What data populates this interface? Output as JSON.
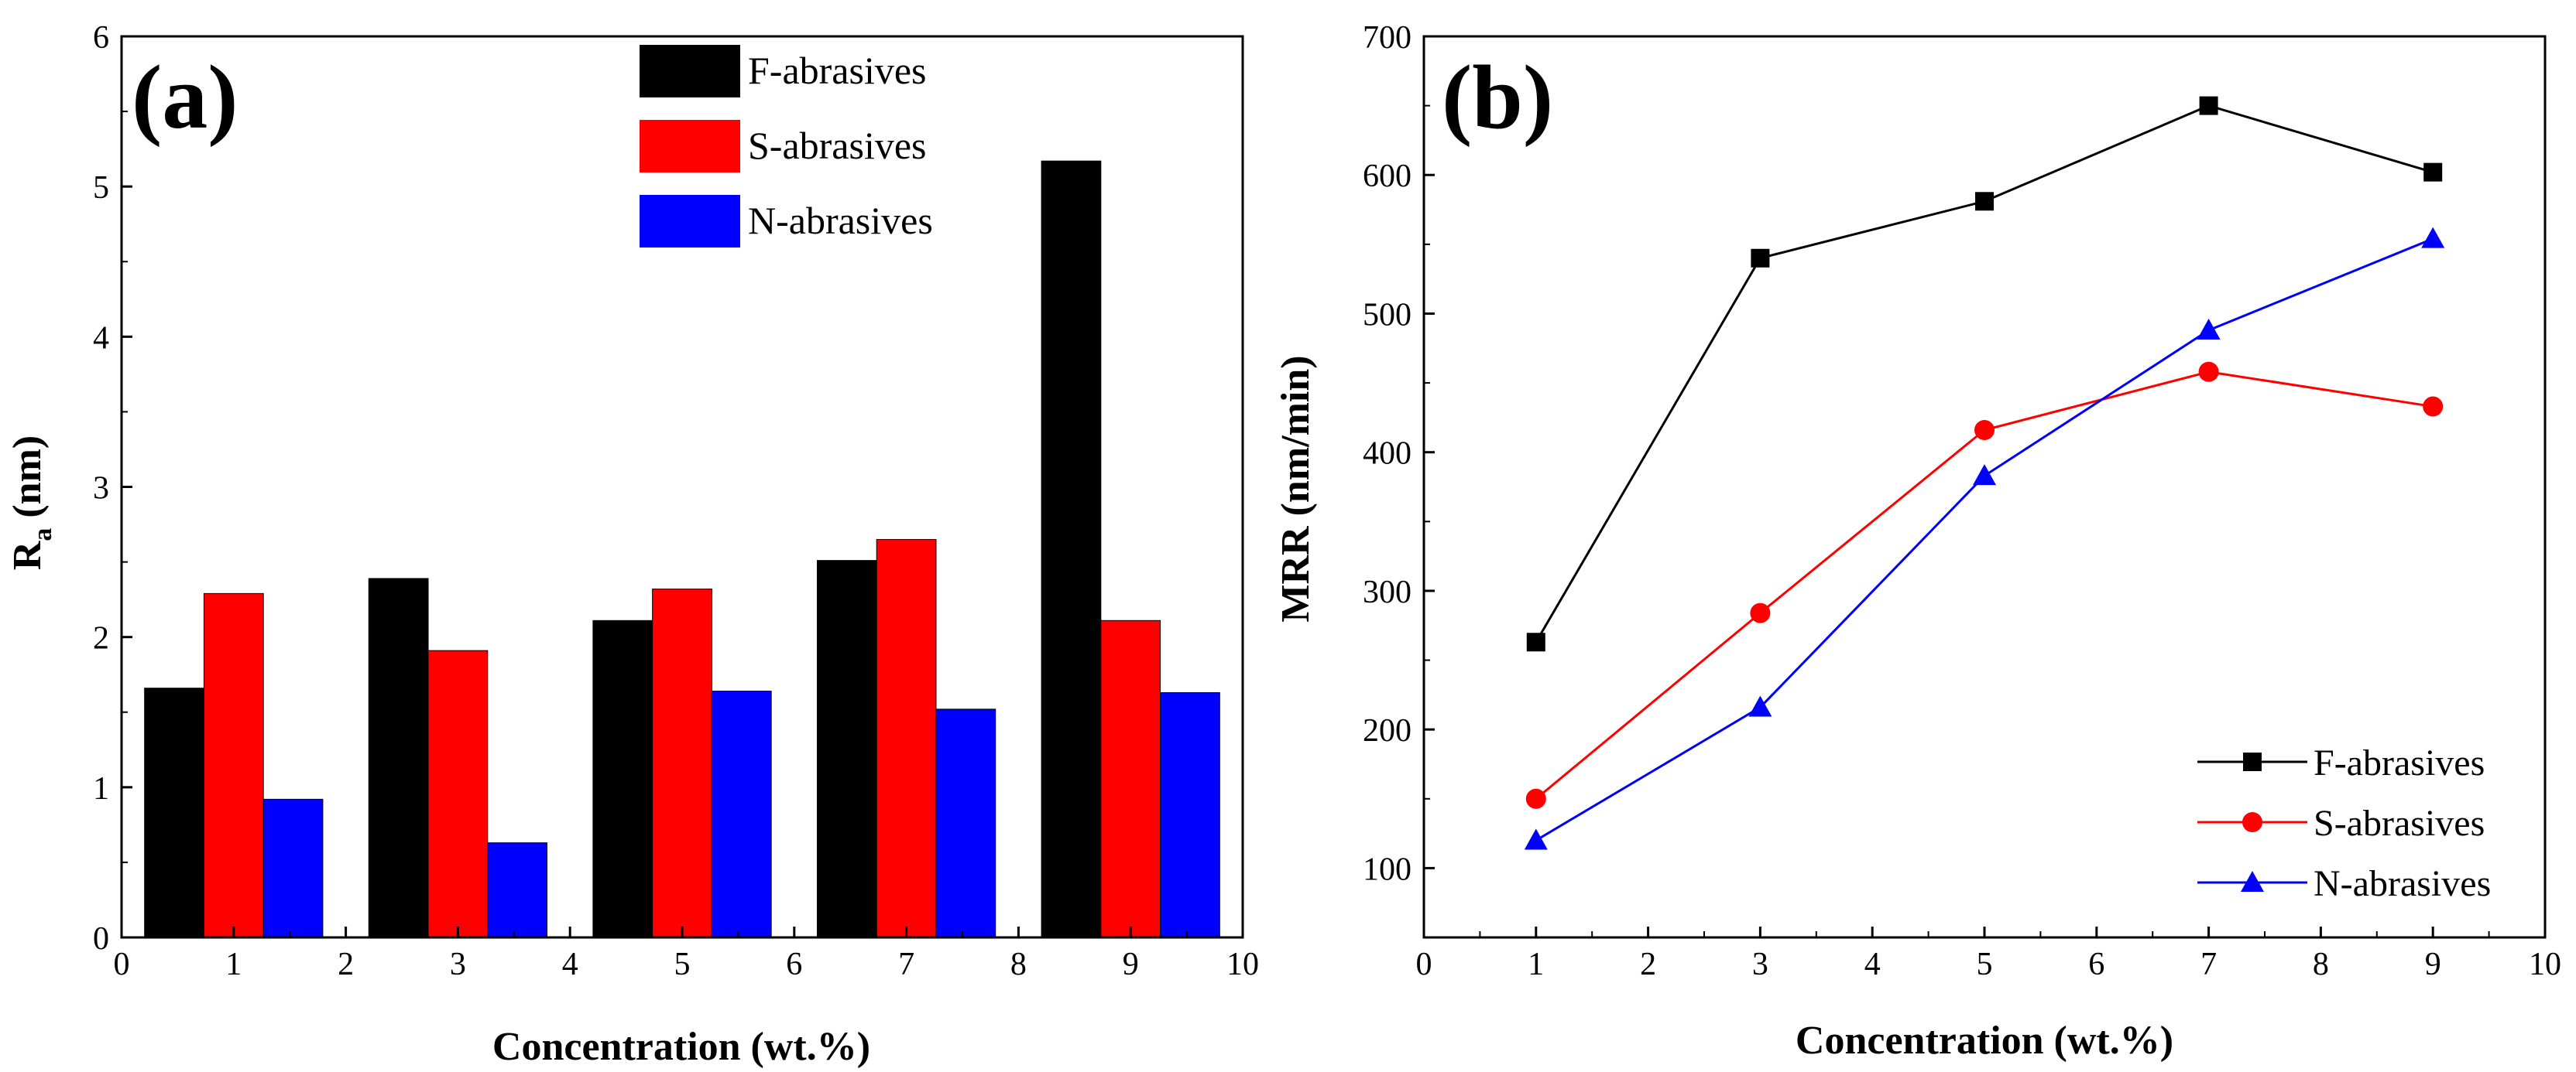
{
  "chart_data": [
    {
      "panel_label": "(a)",
      "type": "bar",
      "x": [
        1,
        3,
        5,
        7,
        9
      ],
      "series": [
        {
          "name": "F-abrasives",
          "color": "#000000",
          "values": [
            1.66,
            2.39,
            2.11,
            2.51,
            5.17
          ]
        },
        {
          "name": "S-abrasives",
          "color": "#ff0000",
          "values": [
            2.29,
            1.91,
            2.32,
            2.65,
            2.11
          ]
        },
        {
          "name": "N-abrasives",
          "color": "#0000ff",
          "values": [
            0.92,
            0.63,
            1.64,
            1.52,
            1.63
          ]
        }
      ],
      "xlabel": "Concentration (wt.%)",
      "ylabel_main": "R",
      "ylabel_sub": "a",
      "ylabel_unit": " (nm)",
      "xlim": [
        0,
        10
      ],
      "ylim": [
        0,
        6
      ],
      "xticks": [
        "0",
        "1",
        "2",
        "3",
        "4",
        "5",
        "6",
        "7",
        "8",
        "9",
        "10"
      ],
      "yticks": [
        "0",
        "1",
        "2",
        "3",
        "4",
        "5",
        "6"
      ],
      "legend_position": "top-right"
    },
    {
      "panel_label": "(b)",
      "type": "line",
      "x": [
        1,
        3,
        5,
        7,
        9
      ],
      "series": [
        {
          "name": "F-abrasives",
          "color": "#000000",
          "marker": "square",
          "values": [
            263,
            540,
            581,
            650,
            602
          ]
        },
        {
          "name": "S-abrasives",
          "color": "#ff0000",
          "marker": "circle",
          "values": [
            150,
            284,
            416,
            458,
            433
          ]
        },
        {
          "name": "N-abrasives",
          "color": "#0000ff",
          "marker": "triangle",
          "values": [
            120,
            216,
            383,
            488,
            554
          ]
        }
      ],
      "xlabel": "Concentration (wt.%)",
      "ylabel": "MRR (nm/min)",
      "xlim": [
        0,
        10
      ],
      "ylim": [
        50,
        700
      ],
      "xticks": [
        "0",
        "1",
        "2",
        "3",
        "4",
        "5",
        "6",
        "7",
        "8",
        "9",
        "10"
      ],
      "yticks": [
        "100",
        "200",
        "300",
        "400",
        "500",
        "600",
        "700"
      ],
      "legend_position": "bottom-right"
    }
  ]
}
